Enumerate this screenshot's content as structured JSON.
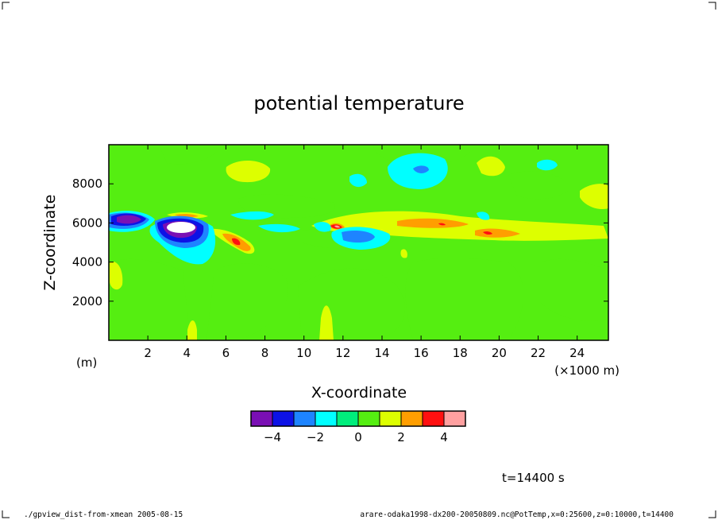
{
  "chart_data": {
    "type": "heatmap",
    "title": "potential temperature",
    "xlabel": "X-coordinate",
    "ylabel": "Z-coordinate",
    "x_unit_label": "(×1000 m)",
    "y_unit_label": "(m)",
    "x_range": [
      0,
      25.6
    ],
    "y_range": [
      0,
      10000
    ],
    "x_ticks": [
      "2",
      "4",
      "6",
      "8",
      "10",
      "12",
      "14",
      "16",
      "18",
      "20",
      "22",
      "24"
    ],
    "y_ticks": [
      "2000",
      "4000",
      "6000",
      "8000"
    ],
    "colorbar": {
      "levels": [
        -5,
        -4,
        -3,
        -2,
        -1,
        0,
        1,
        2,
        3,
        4,
        5
      ],
      "tick_labels": [
        "−4",
        "−2",
        "0",
        "2",
        "4"
      ],
      "colors": [
        "#7a0fb4",
        "#0d12e6",
        "#1e84ff",
        "#00ffff",
        "#00ee7c",
        "#55ee11",
        "#ddff00",
        "#ff9e00",
        "#ff1010",
        "#ffa0a0"
      ]
    },
    "background_level": 0.5,
    "features": [
      {
        "x": 1.4,
        "z": 6000,
        "anomaly": -4.5
      },
      {
        "x": 3.6,
        "z": 5600,
        "anomaly": -5.5
      },
      {
        "x": 6.6,
        "z": 5000,
        "anomaly": 3.5
      },
      {
        "x": 11.8,
        "z": 5700,
        "anomaly": 4.5
      },
      {
        "x": 12.6,
        "z": 5200,
        "anomaly": -2.5
      },
      {
        "x": 16.1,
        "z": 8600,
        "anomaly": -2.5
      },
      {
        "x": 17.5,
        "z": 5800,
        "anomaly": 3.0
      },
      {
        "x": 19.4,
        "z": 5400,
        "anomaly": 3.5
      }
    ]
  },
  "time_label": "t=14400 s",
  "footer": {
    "left": "./gpview_dist-from-xmean  2005-08-15",
    "right": "arare-odaka1998-dx200-20050809.nc@PotTemp,x=0:25600,z=0:10000,t=14400"
  }
}
